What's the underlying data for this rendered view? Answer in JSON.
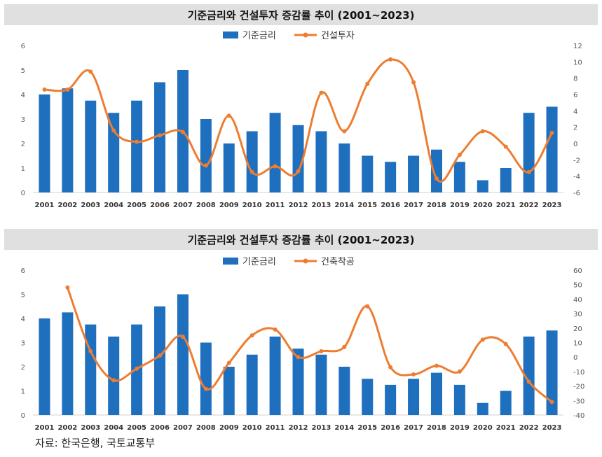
{
  "colors": {
    "bar": "#1f6fbf",
    "line": "#ed7d31",
    "title_bg": "#e0e0e0"
  },
  "source": "자료: 한국은행, 국토교통부",
  "chart_data": [
    {
      "type": "bar+line",
      "title": "기준금리와 건설투자 증감률 추이 (2001~2023)",
      "categories": [
        "2001",
        "2002",
        "2003",
        "2004",
        "2005",
        "2006",
        "2007",
        "2008",
        "2009",
        "2010",
        "2011",
        "2012",
        "2013",
        "2014",
        "2015",
        "2016",
        "2017",
        "2018",
        "2019",
        "2020",
        "2021",
        "2022",
        "2023"
      ],
      "bar_series": {
        "name": "기준금리",
        "values": [
          4.0,
          4.25,
          3.75,
          3.25,
          3.75,
          4.5,
          5.0,
          3.0,
          2.0,
          2.5,
          3.25,
          2.75,
          2.5,
          2.0,
          1.5,
          1.25,
          1.5,
          1.75,
          1.25,
          0.5,
          1.0,
          3.25,
          3.5
        ]
      },
      "line_series": {
        "name": "건설투자",
        "values": [
          6.6,
          6.6,
          8.8,
          1.6,
          0.2,
          1.0,
          1.4,
          -2.7,
          3.4,
          -3.5,
          -2.8,
          -3.4,
          6.2,
          1.5,
          7.3,
          10.3,
          7.5,
          -4.3,
          -1.4,
          1.5,
          -0.4,
          -3.5,
          1.3
        ]
      },
      "y_left": {
        "min": 0,
        "max": 6,
        "ticks": [
          "0",
          "1",
          "2",
          "3",
          "4",
          "5",
          "6"
        ]
      },
      "y_right": {
        "min": -6,
        "max": 12,
        "ticks": [
          "-6",
          "-4",
          "-2",
          "0",
          "2",
          "4",
          "6",
          "8",
          "10",
          "12"
        ]
      }
    },
    {
      "type": "bar+line",
      "title": "기준금리와 건설투자 증감률 추이 (2001~2023)",
      "categories": [
        "2001",
        "2002",
        "2003",
        "2004",
        "2005",
        "2006",
        "2007",
        "2008",
        "2009",
        "2010",
        "2011",
        "2012",
        "2013",
        "2014",
        "2015",
        "2016",
        "2017",
        "2018",
        "2019",
        "2020",
        "2021",
        "2022",
        "2023"
      ],
      "bar_series": {
        "name": "기준금리",
        "values": [
          4.0,
          4.25,
          3.75,
          3.25,
          3.75,
          4.5,
          5.0,
          3.0,
          2.0,
          2.5,
          3.25,
          2.75,
          2.5,
          2.0,
          1.5,
          1.25,
          1.5,
          1.75,
          1.25,
          0.5,
          1.0,
          3.25,
          3.5
        ]
      },
      "line_series": {
        "name": "건축착공",
        "values": [
          null,
          48,
          4,
          -16,
          -8,
          1,
          14,
          -22,
          -4,
          15,
          19,
          0,
          4,
          7,
          35,
          -7,
          -12,
          -6,
          -10,
          12,
          9,
          -17,
          -31
        ]
      },
      "y_left": {
        "min": 0,
        "max": 6,
        "ticks": [
          "0",
          "1",
          "2",
          "3",
          "4",
          "5",
          "6"
        ]
      },
      "y_right": {
        "min": -40,
        "max": 60,
        "ticks": [
          "-40",
          "-30",
          "-20",
          "-10",
          "0",
          "10",
          "20",
          "30",
          "40",
          "50",
          "60"
        ]
      }
    }
  ]
}
